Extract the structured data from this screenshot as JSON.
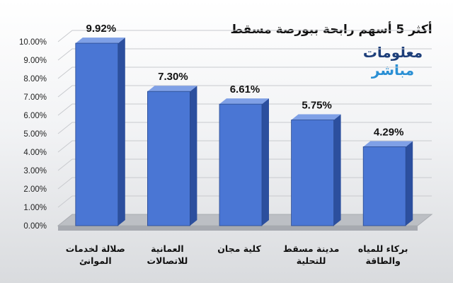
{
  "logo": {
    "line1": "معلومات",
    "line2": "مباشر"
  },
  "colors": {
    "bar_front": "#4a76d4",
    "bar_side": "#2c4f9e",
    "bar_top": "#7fa0e6",
    "floor": "#bcbfc4",
    "logo_dark": "#1e3f7a",
    "logo_light": "#2a8fd4"
  },
  "chart_data": {
    "type": "bar",
    "title": "أكثر 5 أسهم رابحة ببورصة مسقط",
    "categories": [
      [
        "صلالة لخدمات",
        "الموانئ"
      ],
      [
        "العمانية",
        "للاتصالات"
      ],
      [
        "كلية مجان"
      ],
      [
        "مدينة مسقط",
        "للتحلية"
      ],
      [
        "بركاء للمياه",
        "والطاقة"
      ]
    ],
    "values": [
      9.92,
      7.3,
      6.61,
      5.75,
      4.29
    ],
    "data_labels": [
      "9.92%",
      "7.30%",
      "6.61%",
      "5.75%",
      "4.29%"
    ],
    "ylim": [
      0,
      10
    ],
    "yticks": [
      "0.00%",
      "1.00%",
      "2.00%",
      "3.00%",
      "4.00%",
      "5.00%",
      "6.00%",
      "7.00%",
      "8.00%",
      "9.00%",
      "10.00%"
    ],
    "xlabel": "",
    "ylabel": "",
    "grid": true,
    "bar_style": "3d"
  }
}
